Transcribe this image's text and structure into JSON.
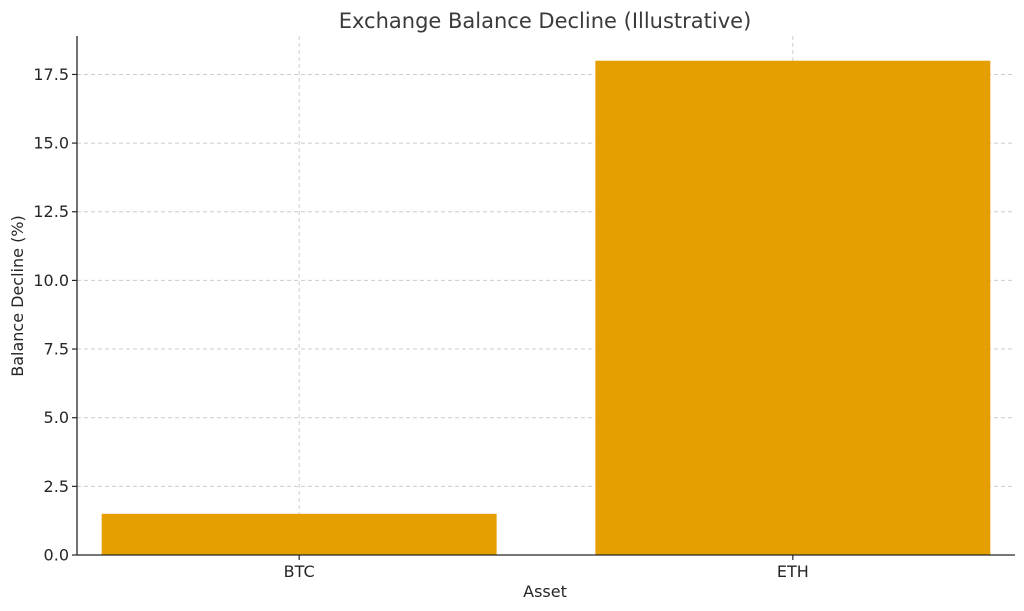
{
  "chart_data": {
    "type": "bar",
    "title": "Exchange Balance Decline (Illustrative)",
    "xlabel": "Asset",
    "ylabel": "Balance Decline (%)",
    "categories": [
      "BTC",
      "ETH"
    ],
    "values": [
      1.5,
      18.0
    ],
    "ylim": [
      0,
      18.9
    ],
    "yticks": [
      0.0,
      2.5,
      5.0,
      7.5,
      10.0,
      12.5,
      15.0,
      17.5
    ],
    "ytick_labels": [
      "0.0",
      "2.5",
      "5.0",
      "7.5",
      "10.0",
      "12.5",
      "15.0",
      "17.5"
    ],
    "bar_color": "#e69f00",
    "grid": true
  }
}
